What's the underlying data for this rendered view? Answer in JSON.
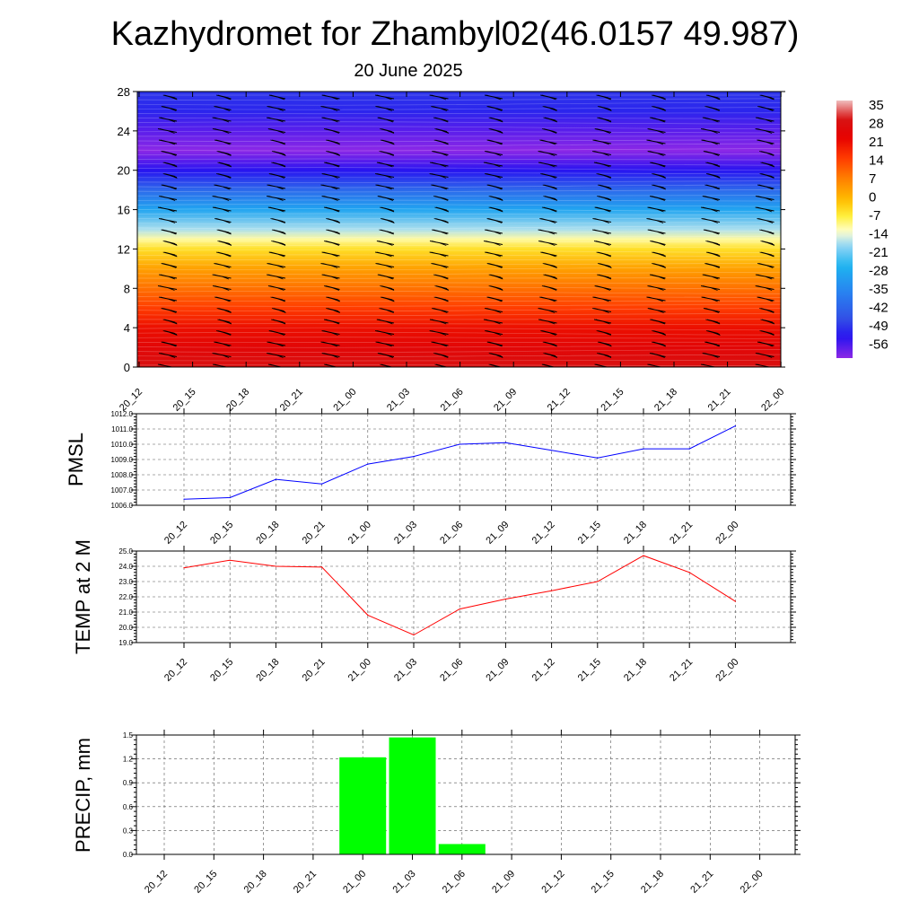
{
  "title": "Kazhydromet for Zhambyl02(46.0157 49.987)",
  "subtitle": "20 June 2025",
  "time_labels": [
    "20_12",
    "20_15",
    "20_18",
    "20_21",
    "21_00",
    "21_03",
    "21_06",
    "21_09",
    "21_12",
    "21_15",
    "21_18",
    "21_21",
    "22_00"
  ],
  "colors": {
    "pmsl_line": "#0000ff",
    "temp_line": "#ff0000",
    "precip_bar": "#00ff00"
  },
  "chart_data": [
    {
      "type": "heatmap",
      "title": "Kazhydromet for Zhambyl02(46.0157 49.987)",
      "subtitle": "20 June 2025",
      "x_categories": [
        "20_12",
        "20_15",
        "20_18",
        "20_21",
        "21_00",
        "21_03",
        "21_06",
        "21_09",
        "21_12",
        "21_15",
        "21_18",
        "21_21",
        "22_00"
      ],
      "ylim": [
        0,
        28
      ],
      "yticks": [
        0,
        4,
        8,
        12,
        16,
        20,
        24,
        28
      ],
      "colorbar_labels": [
        "35",
        "28",
        "21",
        "14",
        "7",
        "0",
        "-7",
        "-14",
        "-21",
        "-28",
        "-35",
        "-42",
        "-49",
        "-56"
      ],
      "colorbar_range": [
        -60,
        38
      ],
      "temperature_profile": {
        "heights": [
          0,
          2,
          4,
          6,
          8,
          10,
          12,
          13,
          14,
          16,
          18,
          20,
          22,
          24,
          26,
          28
        ],
        "values": [
          30,
          26,
          22,
          16,
          10,
          4,
          -4,
          -10,
          -16,
          -28,
          -40,
          -52,
          -60,
          -56,
          -50,
          -48
        ]
      }
    },
    {
      "type": "line",
      "ylabel": "PMSL",
      "x": [
        "20_12",
        "20_15",
        "20_18",
        "20_21",
        "21_00",
        "21_03",
        "21_06",
        "21_09",
        "21_12",
        "21_15",
        "21_18",
        "21_21",
        "22_00"
      ],
      "ylim": [
        1006.0,
        1012.0
      ],
      "yticks": [
        "1006.0",
        "1007.0",
        "1008.0",
        "1009.0",
        "1010.0",
        "1011.0",
        "1012.0"
      ],
      "series": [
        {
          "values": [
            1006.4,
            1006.5,
            1007.7,
            1007.4,
            1008.7,
            1009.2,
            1010.0,
            1010.1,
            1009.6,
            1009.1,
            1009.7,
            1009.7,
            1011.2
          ]
        }
      ]
    },
    {
      "type": "line",
      "ylabel": "TEMP at 2 M",
      "x": [
        "20_12",
        "20_15",
        "20_18",
        "20_21",
        "21_00",
        "21_03",
        "21_06",
        "21_09",
        "21_12",
        "21_15",
        "21_18",
        "21_21",
        "22_00"
      ],
      "ylim": [
        19.0,
        25.0
      ],
      "yticks": [
        "19.0",
        "20.0",
        "21.0",
        "22.0",
        "23.0",
        "24.0",
        "25.0"
      ],
      "series": [
        {
          "values": [
            23.9,
            24.4,
            24.0,
            23.95,
            20.8,
            19.5,
            21.2,
            21.85,
            22.4,
            23.0,
            24.7,
            23.6,
            21.7
          ]
        }
      ]
    },
    {
      "type": "bar",
      "ylabel": "PRECIP, mm",
      "categories": [
        "20_12",
        "20_15",
        "20_18",
        "20_21",
        "21_00",
        "21_03",
        "21_06",
        "21_09",
        "21_12",
        "21_15",
        "21_18",
        "21_21",
        "22_00"
      ],
      "ylim": [
        0.0,
        1.5
      ],
      "yticks": [
        "0.0",
        "0.3",
        "0.6",
        "0.9",
        "1.2",
        "1.5"
      ],
      "values": [
        0,
        0,
        0,
        0,
        1.22,
        1.47,
        0.13,
        0,
        0,
        0,
        0,
        0,
        0
      ]
    }
  ]
}
